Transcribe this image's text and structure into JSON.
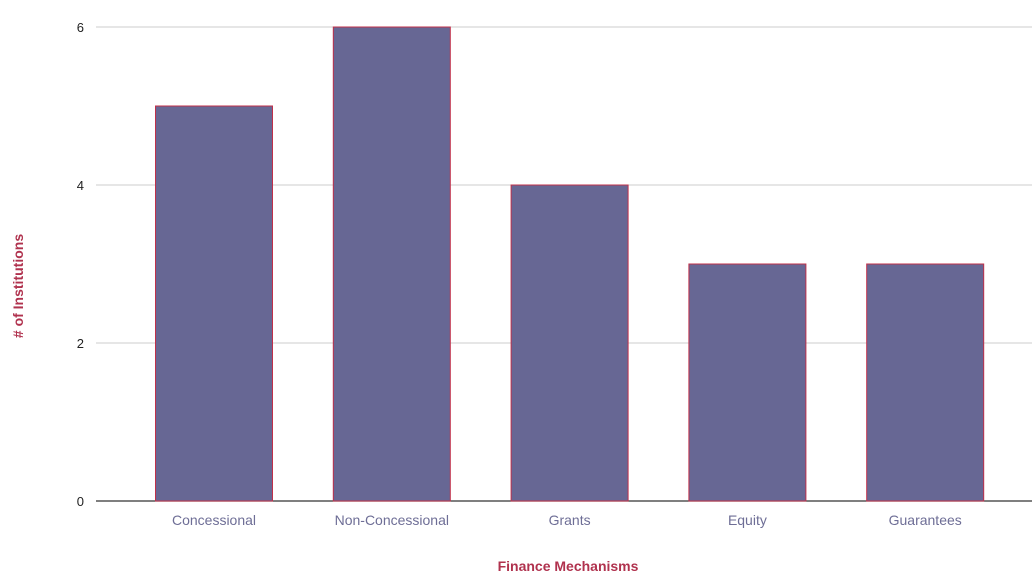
{
  "chart_data": {
    "type": "bar",
    "categories": [
      "Concessional",
      "Non-Concessional",
      "Grants",
      "Equity",
      "Guarantees"
    ],
    "values": [
      5,
      6,
      4,
      3,
      3
    ],
    "xlabel": "Finance Mechanisms",
    "ylabel": "# of Institutions",
    "ylim": [
      0,
      6
    ],
    "yticks": [
      "0",
      "2",
      "4",
      "6"
    ],
    "grid": true,
    "legend": "none",
    "colors": {
      "bar_fill": "#676794",
      "bar_stroke": "#c0304a",
      "axis_title": "#b0324e",
      "x_tick": "#6e6e96"
    }
  }
}
